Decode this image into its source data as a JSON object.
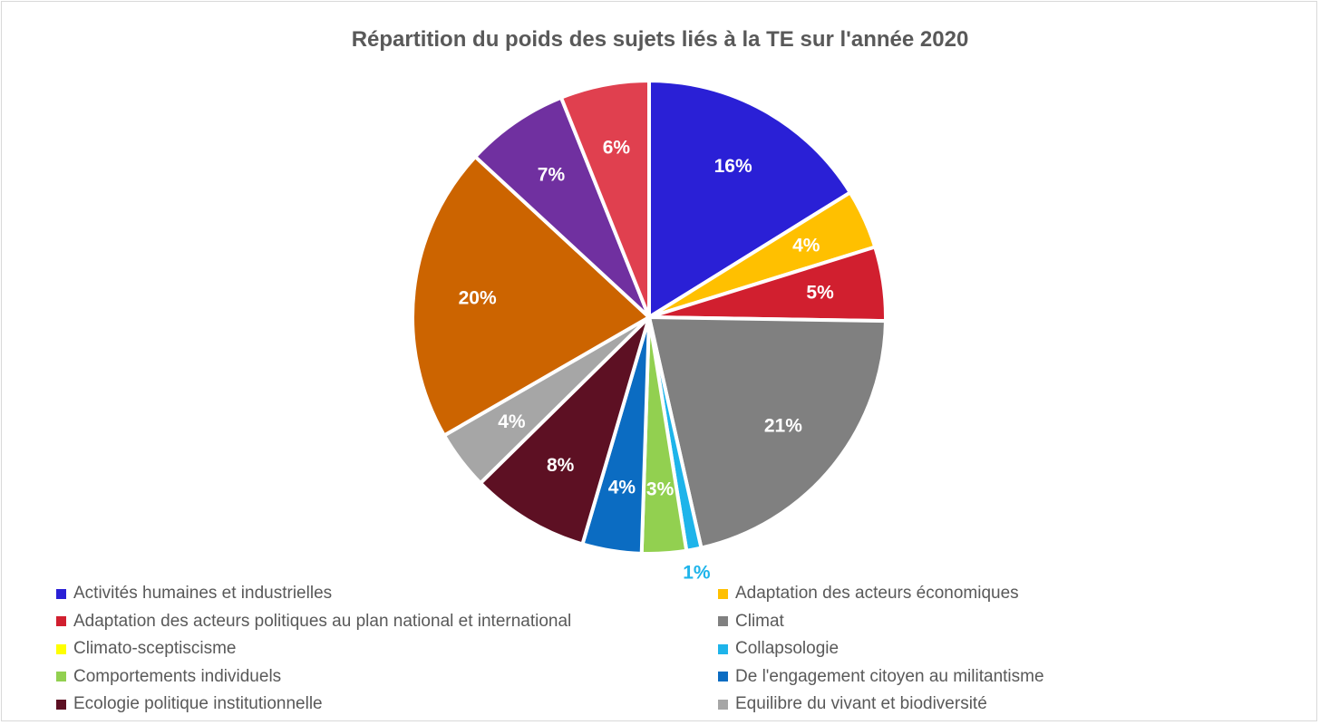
{
  "chart_data": {
    "type": "pie",
    "title": "Répartition du poids des sujets liés à la TE sur l'année 2020",
    "slices": [
      {
        "label": "Activités humaines et industrielles",
        "value": 16,
        "display": "16%",
        "color": "#2a20d6"
      },
      {
        "label": "Adaptation des acteurs économiques",
        "value": 4,
        "display": "4%",
        "color": "#ffc000"
      },
      {
        "label": "Adaptation des acteurs politiques au plan national et international",
        "value": 5,
        "display": "5%",
        "color": "#d11f2f"
      },
      {
        "label": "Climat",
        "value": 21,
        "display": "21%",
        "color": "#808080"
      },
      {
        "label": "Climato-sceptiscisme",
        "value": 0,
        "display": "",
        "color": "#ffff00"
      },
      {
        "label": "Collapsologie",
        "value": 1,
        "display": "1%",
        "color": "#1eb4ea"
      },
      {
        "label": "Comportements individuels",
        "value": 3,
        "display": "3%",
        "color": "#92d050"
      },
      {
        "label": "De l'engagement citoyen au militantisme",
        "value": 4,
        "display": "4%",
        "color": "#0b6cc2"
      },
      {
        "label": "Ecologie politique institutionnelle",
        "value": 8,
        "display": "8%",
        "color": "#5d1023"
      },
      {
        "label": "Equilibre du vivant et biodiversité",
        "value": 4,
        "display": "4%",
        "color": "#a6a6a6"
      },
      {
        "label": "",
        "value": 20,
        "display": "20%",
        "color": "#cc6400"
      },
      {
        "label": "",
        "value": 7,
        "display": "7%",
        "color": "#7030a0"
      },
      {
        "label": "",
        "value": 6,
        "display": "6%",
        "color": "#e0404f"
      }
    ],
    "legend_position": "bottom"
  }
}
